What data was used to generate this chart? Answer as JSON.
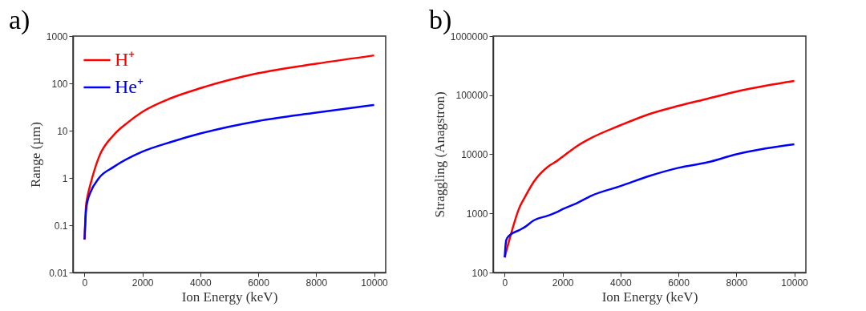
{
  "chart_data": [
    {
      "type": "line",
      "title": "a)",
      "xlabel": "Ion Energy (keV)",
      "ylabel": "Range (µm)",
      "log": "y",
      "legend": "top left",
      "xlim": [
        -400,
        10400
      ],
      "xticks": [
        0,
        2000,
        4000,
        6000,
        8000,
        10000
      ],
      "ylim": [
        0.01,
        1000
      ],
      "yticks": [
        0.01,
        0.1,
        1,
        10,
        100,
        1000
      ],
      "series": [
        {
          "name": "H⁺",
          "color": "#ff0000",
          "x": [
            0,
            50,
            100,
            200,
            500,
            1000,
            1500,
            2000,
            3000,
            4000,
            6000,
            8000,
            10000
          ],
          "values": [
            0.05,
            0.25,
            0.4,
            0.72,
            2.8,
            8,
            15,
            25,
            49,
            79,
            164,
            260,
            390
          ]
        },
        {
          "name": "He⁺",
          "color": "#0000ff",
          "x": [
            0,
            50,
            100,
            200,
            500,
            1000,
            2000,
            3000,
            4000,
            6000,
            8000,
            10000
          ],
          "values": [
            0.05,
            0.2,
            0.32,
            0.49,
            1.0,
            1.7,
            3.6,
            5.8,
            8.7,
            16,
            24,
            35
          ]
        }
      ]
    },
    {
      "type": "line",
      "title": "b)",
      "xlabel": "Ion Energy (keV)",
      "ylabel": "Straggling (Anagstron)",
      "log": "y",
      "legend": "top left",
      "xlim": [
        -400,
        10400
      ],
      "xticks": [
        0,
        2000,
        4000,
        6000,
        8000,
        10000
      ],
      "ylim": [
        100,
        1000000
      ],
      "yticks": [
        100,
        1000,
        10000,
        100000,
        1000000
      ],
      "series": [
        {
          "name": "H⁺",
          "color": "#ff0000",
          "x": [
            0,
            100,
            200,
            500,
            700,
            1000,
            1500,
            1800,
            2000,
            2500,
            3000,
            4000,
            5000,
            6000,
            7000,
            8000,
            9000,
            10000
          ],
          "values": [
            180,
            280,
            420,
            1230,
            1900,
            3400,
            6200,
            7700,
            9100,
            13800,
            19000,
            31000,
            48000,
            66000,
            87000,
            115000,
            144000,
            174000
          ]
        },
        {
          "name": "He⁺",
          "color": "#0000ff",
          "x": [
            0,
            50,
            150,
            500,
            700,
            1000,
            1500,
            1800,
            2000,
            2500,
            3000,
            4000,
            5000,
            6000,
            7000,
            8000,
            9000,
            10000
          ],
          "values": [
            180,
            350,
            420,
            520,
            590,
            760,
            920,
            1050,
            1180,
            1500,
            2000,
            2900,
            4300,
            5900,
            7300,
            10000,
            12500,
            14800
          ]
        }
      ]
    }
  ]
}
